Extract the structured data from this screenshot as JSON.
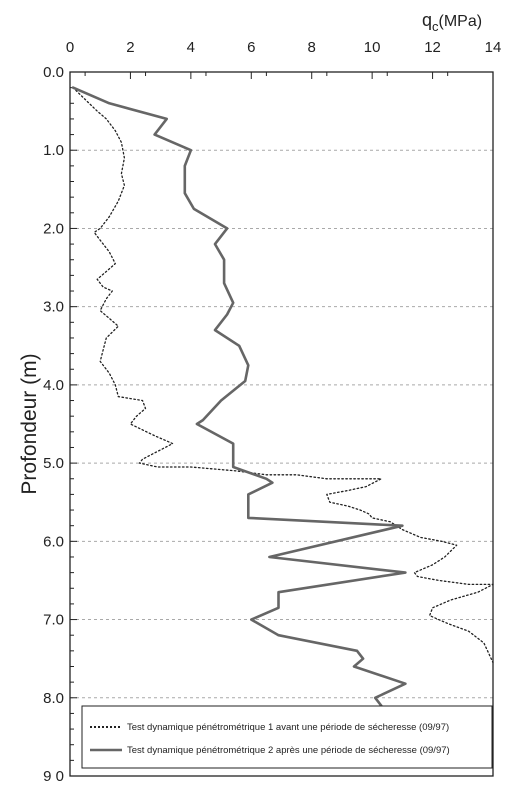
{
  "chart_data": {
    "type": "line",
    "xlabel_main": "q",
    "xlabel_sub": "c",
    "xlabel_unit": "(MPa)",
    "ylabel": "Profondeur (m)",
    "xlim": [
      0,
      14
    ],
    "ylim": [
      0,
      9
    ],
    "x_ticks": [
      "0",
      "2",
      "4",
      "6",
      "8",
      "10",
      "12",
      "14"
    ],
    "y_ticks": [
      "0.0",
      "1.0",
      "2.0",
      "3.0",
      "4.0",
      "5.0",
      "6.0",
      "7.0",
      "8.0",
      "9 0"
    ],
    "y_tick_values": [
      0,
      1,
      2,
      3,
      4,
      5,
      6,
      7,
      8,
      9
    ],
    "grid_y": true,
    "series": [
      {
        "name": "Test dynamique pénétrométrique 1 avant une période de sécheresse (09/97)",
        "style": "dotted",
        "color": "#222222",
        "points": [
          [
            0.1,
            0.2
          ],
          [
            0.5,
            0.35
          ],
          [
            0.9,
            0.5
          ],
          [
            1.2,
            0.6
          ],
          [
            1.5,
            0.75
          ],
          [
            1.7,
            0.9
          ],
          [
            1.8,
            1.1
          ],
          [
            1.7,
            1.3
          ],
          [
            1.8,
            1.45
          ],
          [
            1.6,
            1.65
          ],
          [
            1.3,
            1.85
          ],
          [
            1.0,
            2.0
          ],
          [
            0.8,
            2.05
          ],
          [
            1.0,
            2.15
          ],
          [
            1.3,
            2.3
          ],
          [
            1.5,
            2.45
          ],
          [
            1.2,
            2.55
          ],
          [
            0.9,
            2.65
          ],
          [
            1.1,
            2.75
          ],
          [
            1.4,
            2.8
          ],
          [
            1.2,
            2.9
          ],
          [
            1.0,
            3.05
          ],
          [
            1.3,
            3.15
          ],
          [
            1.6,
            3.25
          ],
          [
            1.2,
            3.4
          ],
          [
            1.1,
            3.55
          ],
          [
            1.0,
            3.7
          ],
          [
            1.3,
            3.85
          ],
          [
            1.5,
            4.0
          ],
          [
            1.6,
            4.15
          ],
          [
            2.4,
            4.2
          ],
          [
            2.5,
            4.3
          ],
          [
            2.2,
            4.4
          ],
          [
            2.0,
            4.5
          ],
          [
            2.8,
            4.65
          ],
          [
            3.4,
            4.75
          ],
          [
            2.9,
            4.85
          ],
          [
            2.4,
            4.95
          ],
          [
            2.3,
            5.0
          ],
          [
            2.9,
            5.05
          ],
          [
            4.0,
            5.05
          ],
          [
            5.5,
            5.1
          ],
          [
            6.5,
            5.15
          ],
          [
            7.5,
            5.15
          ],
          [
            8.5,
            5.2
          ],
          [
            9.5,
            5.2
          ],
          [
            10.3,
            5.2
          ],
          [
            9.8,
            5.3
          ],
          [
            9.2,
            5.35
          ],
          [
            8.5,
            5.4
          ],
          [
            8.6,
            5.5
          ],
          [
            9.2,
            5.55
          ],
          [
            9.6,
            5.6
          ],
          [
            9.9,
            5.65
          ],
          [
            10.0,
            5.7
          ],
          [
            10.6,
            5.75
          ],
          [
            11.0,
            5.85
          ],
          [
            11.6,
            5.95
          ],
          [
            12.3,
            6.0
          ],
          [
            12.8,
            6.05
          ],
          [
            12.4,
            6.2
          ],
          [
            12.0,
            6.3
          ],
          [
            11.4,
            6.4
          ],
          [
            11.5,
            6.45
          ],
          [
            12.2,
            6.5
          ],
          [
            13.2,
            6.55
          ],
          [
            14.0,
            6.55
          ],
          [
            13.5,
            6.65
          ],
          [
            12.6,
            6.75
          ],
          [
            12.0,
            6.85
          ],
          [
            11.9,
            6.95
          ],
          [
            12.5,
            7.05
          ],
          [
            13.2,
            7.15
          ],
          [
            13.7,
            7.3
          ],
          [
            14.0,
            7.55
          ]
        ]
      },
      {
        "name": "Test dynamique pénétrométrique 2 après une période de sécheresse (09/97)",
        "style": "solid",
        "color": "#666666",
        "points": [
          [
            0.1,
            0.2
          ],
          [
            1.3,
            0.4
          ],
          [
            3.2,
            0.6
          ],
          [
            2.8,
            0.8
          ],
          [
            4.0,
            1.0
          ],
          [
            3.8,
            1.2
          ],
          [
            3.8,
            1.55
          ],
          [
            4.1,
            1.75
          ],
          [
            5.2,
            2.0
          ],
          [
            4.8,
            2.2
          ],
          [
            5.1,
            2.4
          ],
          [
            5.1,
            2.7
          ],
          [
            5.4,
            2.95
          ],
          [
            5.2,
            3.1
          ],
          [
            4.8,
            3.3
          ],
          [
            5.6,
            3.5
          ],
          [
            5.9,
            3.75
          ],
          [
            5.8,
            3.95
          ],
          [
            5.0,
            4.2
          ],
          [
            4.4,
            4.45
          ],
          [
            4.2,
            4.5
          ],
          [
            5.4,
            4.75
          ],
          [
            5.4,
            5.05
          ],
          [
            6.5,
            5.2
          ],
          [
            6.7,
            5.25
          ],
          [
            5.9,
            5.4
          ],
          [
            5.9,
            5.7
          ],
          [
            11.0,
            5.8
          ],
          [
            6.6,
            6.2
          ],
          [
            11.1,
            6.4
          ],
          [
            6.9,
            6.65
          ],
          [
            6.9,
            6.85
          ],
          [
            6.0,
            7.0
          ],
          [
            6.9,
            7.2
          ],
          [
            9.5,
            7.4
          ],
          [
            9.7,
            7.5
          ],
          [
            9.4,
            7.6
          ],
          [
            11.1,
            7.82
          ],
          [
            10.1,
            8.0
          ],
          [
            10.3,
            8.1
          ]
        ]
      }
    ]
  }
}
